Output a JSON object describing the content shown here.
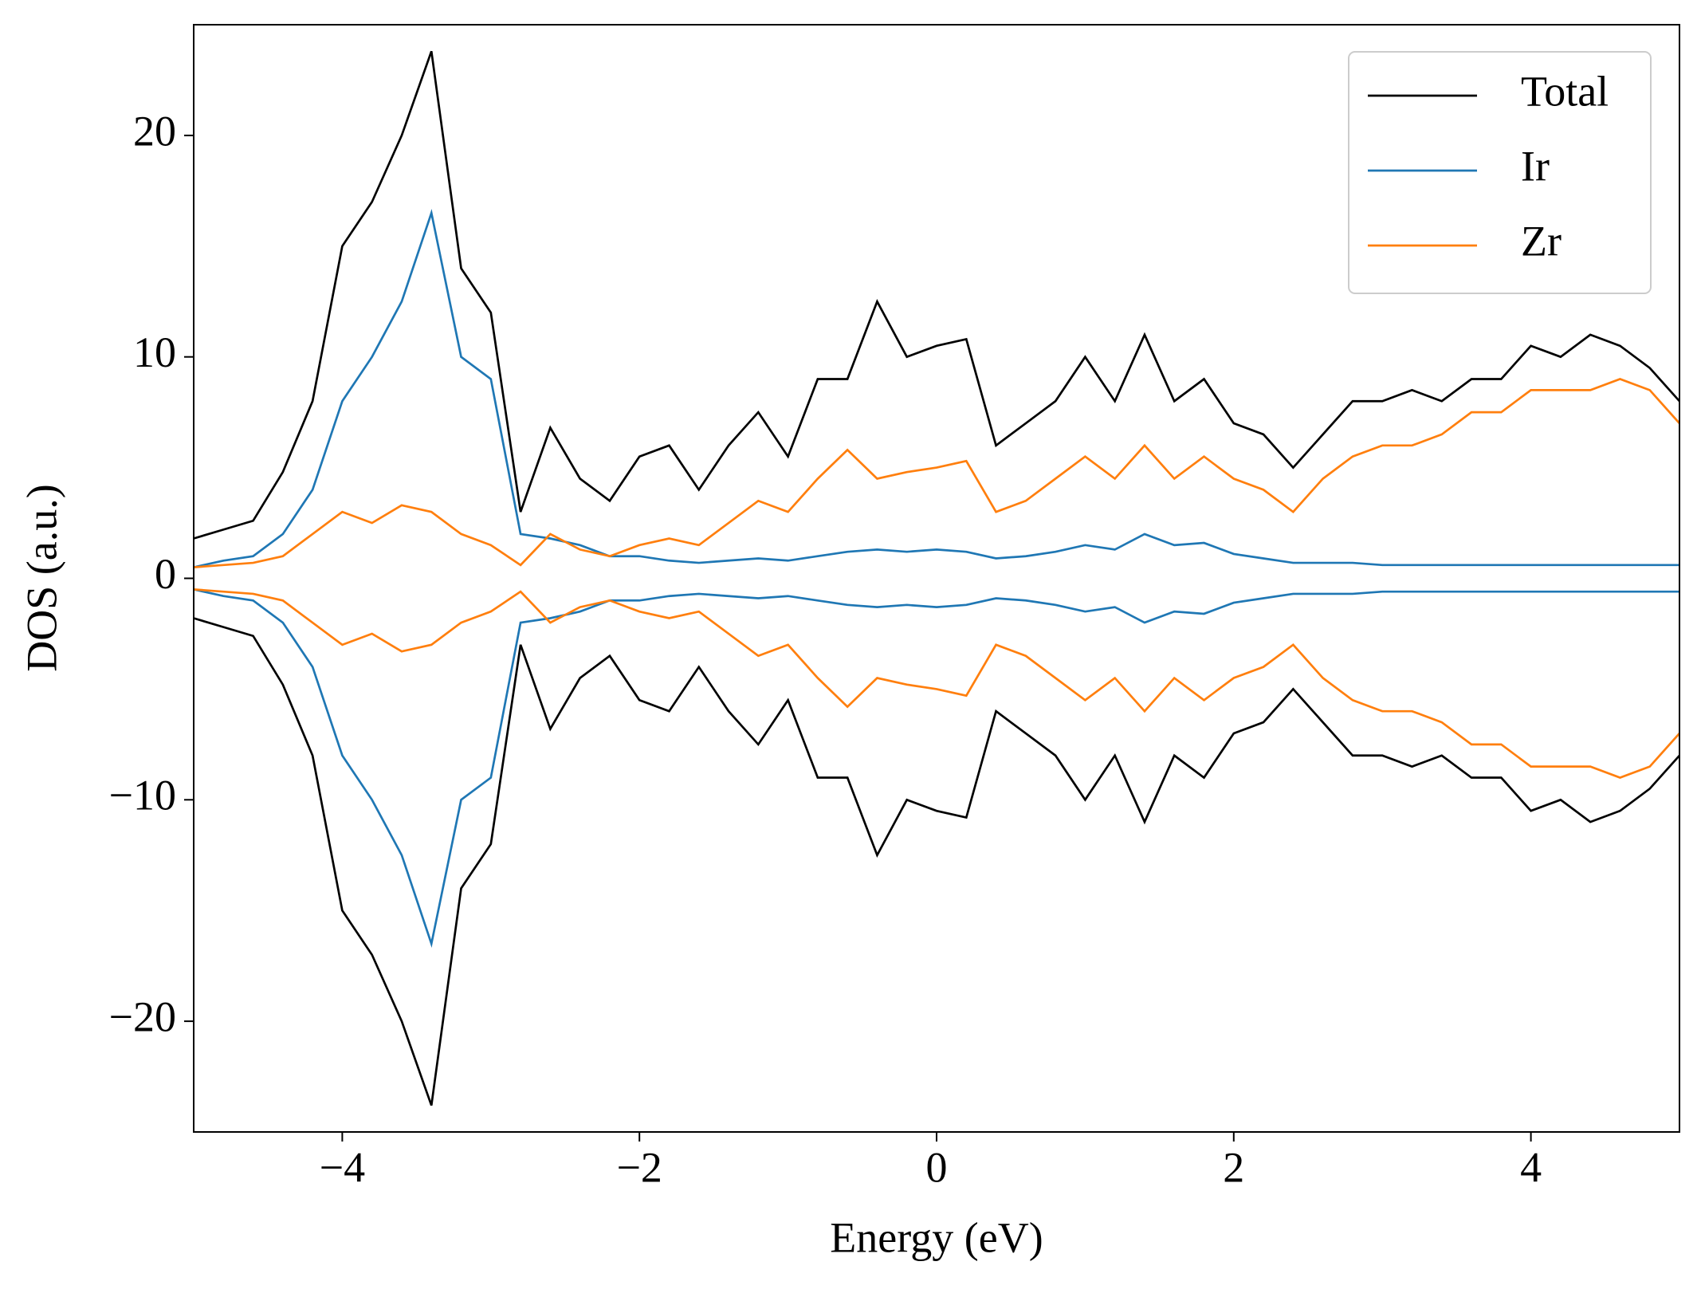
{
  "chart_data": {
    "type": "line",
    "xlabel": "Energy (eV)",
    "ylabel": "DOS (a.u.)",
    "xlim": [
      -5,
      5
    ],
    "ylim": [
      -25,
      25
    ],
    "xticks": [
      {
        "value": -4,
        "label": "−4"
      },
      {
        "value": -2,
        "label": "−2"
      },
      0,
      2,
      4
    ],
    "yticks": [
      {
        "value": -20,
        "label": "−20"
      },
      {
        "value": -10,
        "label": "−10"
      },
      0,
      10,
      20
    ],
    "legend": "upper right",
    "x": [
      -5,
      -4.8,
      -4.6,
      -4.4,
      -4.2,
      -4,
      -3.8,
      -3.6,
      -3.4,
      -3.2,
      -3,
      -2.8,
      -2.6,
      -2.4,
      -2.2,
      -2,
      -1.8,
      -1.6,
      -1.4,
      -1.2,
      -1,
      -0.8,
      -0.6,
      -0.4,
      -0.2,
      0,
      0.2,
      0.4,
      0.6,
      0.8,
      1,
      1.2,
      1.4,
      1.6,
      1.8,
      2,
      2.2,
      2.4,
      2.6,
      2.8,
      3,
      3.2,
      3.4,
      3.6,
      3.8,
      4,
      4.2,
      4.4,
      4.6,
      4.8,
      5
    ],
    "series": [
      {
        "name": "Total",
        "color": "#000000",
        "values": [
          1.8,
          2.2,
          2.6,
          4.8,
          8,
          15,
          17,
          20,
          23.8,
          14,
          12,
          3,
          6.8,
          4.5,
          3.5,
          5.5,
          6,
          4,
          6,
          7.5,
          5.5,
          9,
          9,
          12.5,
          10,
          10.5,
          10.8,
          6,
          7,
          8,
          10,
          8,
          11,
          8,
          9,
          7,
          6.5,
          5,
          6.5,
          8,
          8,
          8.5,
          8,
          9,
          9,
          10.5,
          10,
          11,
          10.5,
          9.5,
          8
        ],
        "values_down": [
          -1.8,
          -2.2,
          -2.6,
          -4.8,
          -8,
          -15,
          -17,
          -20,
          -23.8,
          -14,
          -12,
          -3,
          -6.8,
          -4.5,
          -3.5,
          -5.5,
          -6,
          -4,
          -6,
          -7.5,
          -5.5,
          -9,
          -9,
          -12.5,
          -10,
          -10.5,
          -10.8,
          -6,
          -7,
          -8,
          -10,
          -8,
          -11,
          -8,
          -9,
          -7,
          -6.5,
          -5,
          -6.5,
          -8,
          -8,
          -8.5,
          -8,
          -9,
          -9,
          -10.5,
          -10,
          -11,
          -10.5,
          -9.5,
          -8
        ]
      },
      {
        "name": "Ir",
        "color": "#1f77b4",
        "values": [
          0.5,
          0.8,
          1,
          2,
          4,
          8,
          10,
          12.5,
          16.5,
          10,
          9,
          2,
          1.8,
          1.5,
          1,
          1,
          0.8,
          0.7,
          0.8,
          0.9,
          0.8,
          1,
          1.2,
          1.3,
          1.2,
          1.3,
          1.2,
          0.9,
          1,
          1.2,
          1.5,
          1.3,
          2,
          1.5,
          1.6,
          1.1,
          0.9,
          0.7,
          0.7,
          0.7,
          0.6,
          0.6,
          0.6,
          0.6,
          0.6,
          0.6,
          0.6,
          0.6,
          0.6,
          0.6,
          0.6
        ],
        "values_down": [
          -0.5,
          -0.8,
          -1,
          -2,
          -4,
          -8,
          -10,
          -12.5,
          -16.5,
          -10,
          -9,
          -2,
          -1.8,
          -1.5,
          -1,
          -1,
          -0.8,
          -0.7,
          -0.8,
          -0.9,
          -0.8,
          -1,
          -1.2,
          -1.3,
          -1.2,
          -1.3,
          -1.2,
          -0.9,
          -1,
          -1.2,
          -1.5,
          -1.3,
          -2,
          -1.5,
          -1.6,
          -1.1,
          -0.9,
          -0.7,
          -0.7,
          -0.7,
          -0.6,
          -0.6,
          -0.6,
          -0.6,
          -0.6,
          -0.6,
          -0.6,
          -0.6,
          -0.6,
          -0.6,
          -0.6
        ]
      },
      {
        "name": "Zr",
        "color": "#ff7f0e",
        "values": [
          0.5,
          0.6,
          0.7,
          1,
          2,
          3,
          2.5,
          3.3,
          3,
          2,
          1.5,
          0.6,
          2,
          1.3,
          1,
          1.5,
          1.8,
          1.5,
          2.5,
          3.5,
          3,
          4.5,
          5.8,
          4.5,
          4.8,
          5,
          5.3,
          3,
          3.5,
          4.5,
          5.5,
          4.5,
          6,
          4.5,
          5.5,
          4.5,
          4,
          3,
          4.5,
          5.5,
          6,
          6,
          6.5,
          7.5,
          7.5,
          8.5,
          8.5,
          8.5,
          9,
          8.5,
          7
        ],
        "values_down": [
          -0.5,
          -0.6,
          -0.7,
          -1,
          -2,
          -3,
          -2.5,
          -3.3,
          -3,
          -2,
          -1.5,
          -0.6,
          -2,
          -1.3,
          -1,
          -1.5,
          -1.8,
          -1.5,
          -2.5,
          -3.5,
          -3,
          -4.5,
          -5.8,
          -4.5,
          -4.8,
          -5,
          -5.3,
          -3,
          -3.5,
          -4.5,
          -5.5,
          -4.5,
          -6,
          -4.5,
          -5.5,
          -4.5,
          -4,
          -3,
          -4.5,
          -5.5,
          -6,
          -6,
          -6.5,
          -7.5,
          -7.5,
          -8.5,
          -8.5,
          -8.5,
          -9,
          -8.5,
          -7
        ]
      }
    ]
  }
}
